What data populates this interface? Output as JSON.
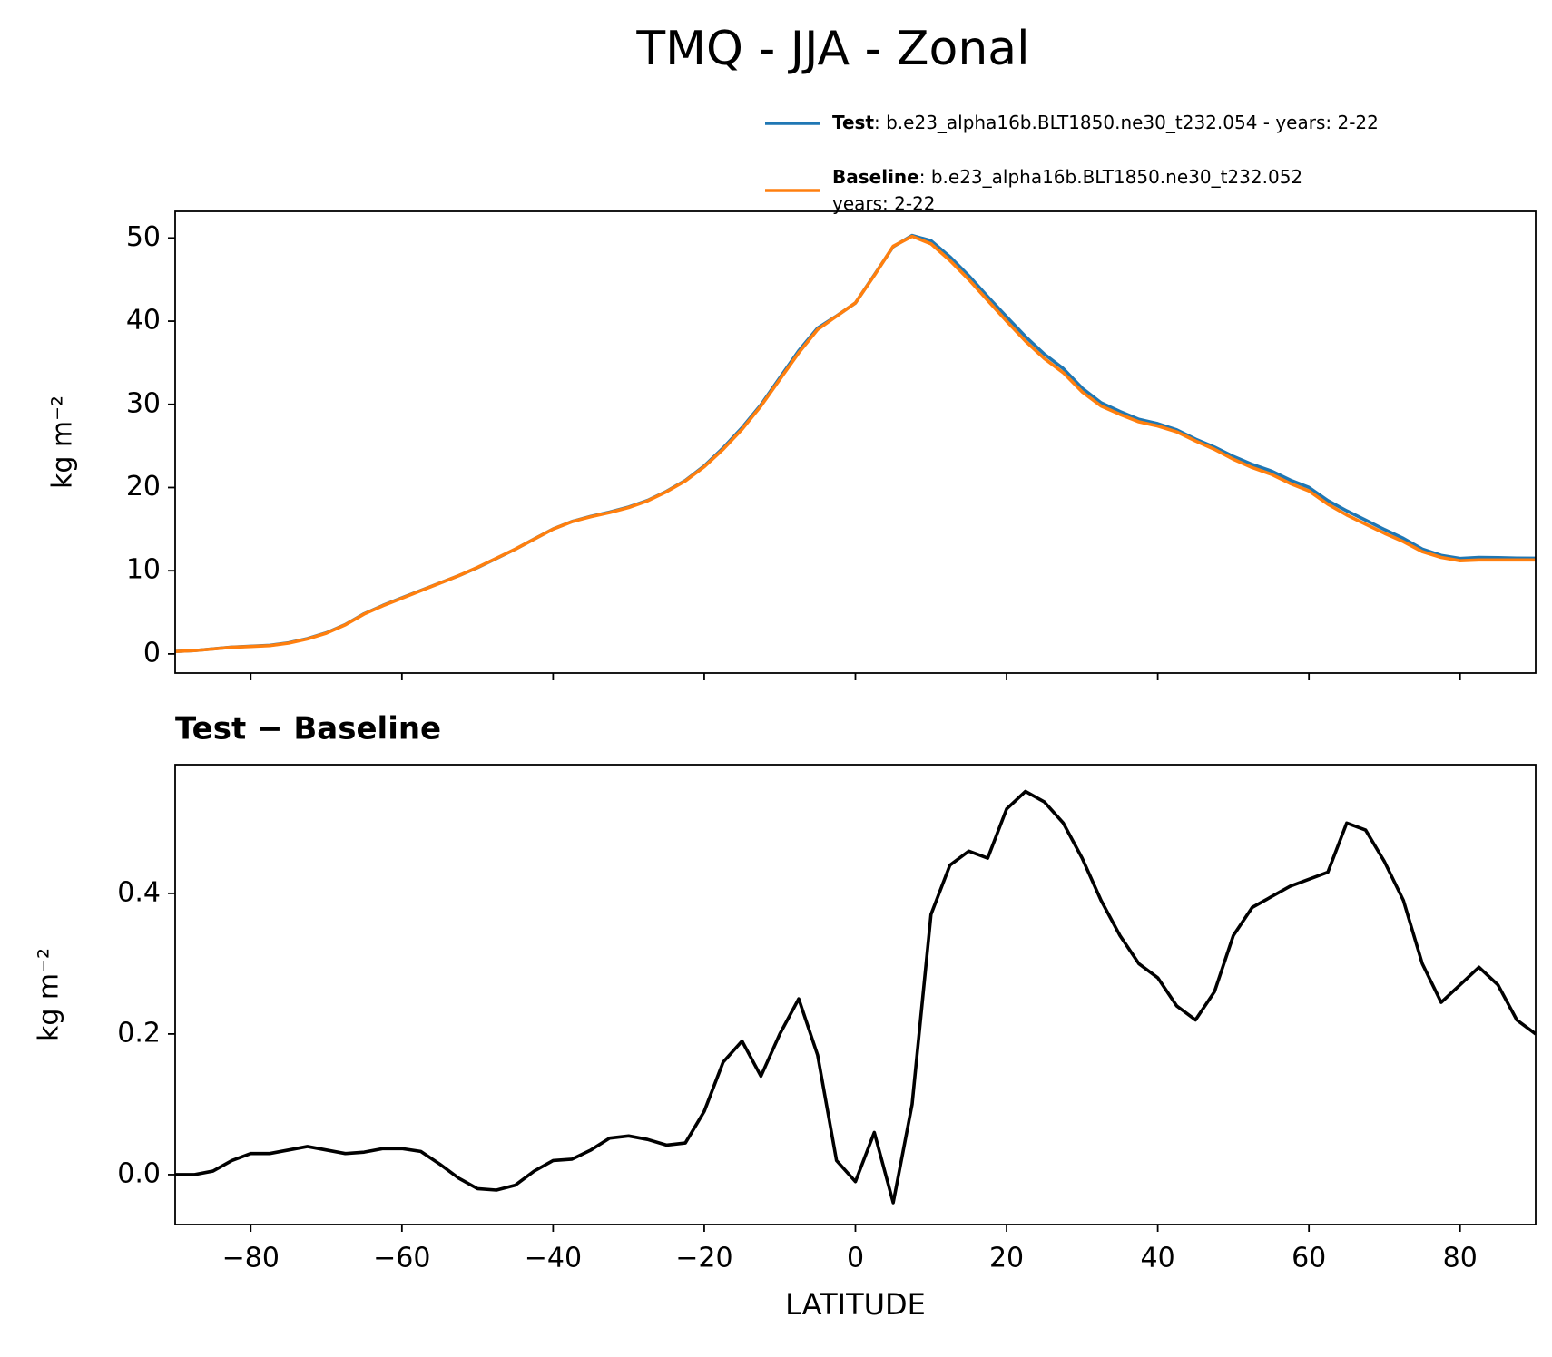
{
  "title": "TMQ - JJA - Zonal",
  "chart_data": [
    {
      "type": "line",
      "x": [
        -90,
        -87.5,
        -85,
        -82.5,
        -80,
        -77.5,
        -75,
        -72.5,
        -70,
        -67.5,
        -65,
        -62.5,
        -60,
        -57.5,
        -55,
        -52.5,
        -50,
        -47.5,
        -45,
        -42.5,
        -40,
        -37.5,
        -35,
        -32.5,
        -30,
        -27.5,
        -25,
        -22.5,
        -20,
        -17.5,
        -15,
        -12.5,
        -10,
        -7.5,
        -5,
        -2.5,
        0,
        2.5,
        5,
        7.5,
        10,
        12.5,
        15,
        17.5,
        20,
        22.5,
        25,
        27.5,
        30,
        32.5,
        35,
        37.5,
        40,
        42.5,
        45,
        47.5,
        50,
        52.5,
        55,
        57.5,
        60,
        62.5,
        65,
        67.5,
        70,
        72.5,
        75,
        77.5,
        80,
        82.5,
        85,
        87.5,
        90
      ],
      "series": [
        {
          "name": "Test",
          "legend_lines": [
            ": b.e23_alpha16b.BLT1850.ne30_t232.054 - years: 2-22"
          ],
          "color": "#1f77b4",
          "values": [
            0.3,
            0.4,
            0.61,
            0.82,
            0.93,
            1.03,
            1.34,
            1.84,
            2.54,
            3.53,
            4.83,
            5.84,
            6.74,
            7.63,
            8.52,
            9.4,
            10.38,
            11.48,
            12.59,
            13.81,
            15.02,
            15.92,
            16.54,
            17.05,
            17.66,
            18.45,
            19.54,
            20.85,
            22.59,
            24.76,
            27.19,
            29.94,
            33.2,
            36.45,
            39.17,
            40.62,
            42.19,
            45.56,
            48.96,
            50.3,
            49.67,
            47.74,
            45.46,
            42.95,
            40.52,
            38.15,
            36.03,
            34.3,
            31.95,
            30.19,
            29.14,
            28.2,
            27.68,
            26.94,
            25.82,
            24.86,
            23.74,
            22.78,
            22.0,
            20.91,
            20.02,
            18.43,
            17.2,
            16.09,
            14.95,
            13.89,
            12.6,
            11.85,
            11.47,
            11.6,
            11.57,
            11.52,
            11.5
          ]
        },
        {
          "name": "Baseline",
          "legend_lines": [
            ": b.e23_alpha16b.BLT1850.ne30_t232.052",
            "years: 2-22"
          ],
          "color": "#ff7f0e",
          "values": [
            0.3,
            0.4,
            0.6,
            0.8,
            0.9,
            1.0,
            1.3,
            1.8,
            2.5,
            3.5,
            4.8,
            5.8,
            6.7,
            7.6,
            8.5,
            9.4,
            10.4,
            11.5,
            12.6,
            13.8,
            15.0,
            15.9,
            16.5,
            17.0,
            17.6,
            18.4,
            19.5,
            20.8,
            22.5,
            24.6,
            27.0,
            29.8,
            33.0,
            36.2,
            39.0,
            40.6,
            42.2,
            45.5,
            49.0,
            50.2,
            49.3,
            47.3,
            45.0,
            42.5,
            40.0,
            37.6,
            35.5,
            33.8,
            31.5,
            29.8,
            28.8,
            27.9,
            27.4,
            26.7,
            25.6,
            24.6,
            23.4,
            22.4,
            21.6,
            20.5,
            19.6,
            18.0,
            16.7,
            15.6,
            14.5,
            13.5,
            12.3,
            11.6,
            11.2,
            11.3,
            11.3,
            11.3,
            11.3
          ]
        }
      ],
      "ylabel": "kg m⁻²",
      "xlim": [
        -90,
        90
      ],
      "xticks": [
        -80,
        -60,
        -40,
        -20,
        0,
        20,
        40,
        60,
        80
      ],
      "show_xtick_labels": false,
      "ylim": [
        -2.3,
        53.2
      ],
      "yticks": [
        0,
        10,
        20,
        30,
        40,
        50
      ]
    },
    {
      "type": "line",
      "title": "Test − Baseline",
      "x": [
        -90,
        -87.5,
        -85,
        -82.5,
        -80,
        -77.5,
        -75,
        -72.5,
        -70,
        -67.5,
        -65,
        -62.5,
        -60,
        -57.5,
        -55,
        -52.5,
        -50,
        -47.5,
        -45,
        -42.5,
        -40,
        -37.5,
        -35,
        -32.5,
        -30,
        -27.5,
        -25,
        -22.5,
        -20,
        -17.5,
        -15,
        -12.5,
        -10,
        -7.5,
        -5,
        -2.5,
        0,
        2.5,
        5,
        7.5,
        10,
        12.5,
        15,
        17.5,
        20,
        22.5,
        25,
        27.5,
        30,
        32.5,
        35,
        37.5,
        40,
        42.5,
        45,
        47.5,
        50,
        52.5,
        55,
        57.5,
        60,
        62.5,
        65,
        67.5,
        70,
        72.5,
        75,
        77.5,
        80,
        82.5,
        85,
        87.5,
        90
      ],
      "series": [
        {
          "color": "#000000",
          "values": [
            0.0,
            0.0,
            0.005,
            0.02,
            0.03,
            0.03,
            0.035,
            0.04,
            0.035,
            0.03,
            0.032,
            0.037,
            0.037,
            0.033,
            0.015,
            -0.005,
            -0.02,
            -0.022,
            -0.015,
            0.005,
            0.02,
            0.022,
            0.035,
            0.052,
            0.055,
            0.05,
            0.042,
            0.045,
            0.09,
            0.16,
            0.19,
            0.14,
            0.2,
            0.25,
            0.17,
            0.02,
            -0.01,
            0.06,
            -0.04,
            0.1,
            0.37,
            0.44,
            0.46,
            0.45,
            0.52,
            0.545,
            0.53,
            0.5,
            0.45,
            0.39,
            0.34,
            0.3,
            0.28,
            0.24,
            0.22,
            0.26,
            0.34,
            0.38,
            0.395,
            0.41,
            0.42,
            0.43,
            0.5,
            0.49,
            0.445,
            0.39,
            0.3,
            0.245,
            0.27,
            0.295,
            0.27,
            0.22,
            0.2
          ]
        }
      ],
      "ylabel": "kg m⁻²",
      "xlabel": "LATITUDE",
      "xlim": [
        -90,
        90
      ],
      "xticks": [
        {
          "value": -80,
          "label": "−80"
        },
        {
          "value": -60,
          "label": "−60"
        },
        {
          "value": -40,
          "label": "−40"
        },
        {
          "value": -20,
          "label": "−20"
        },
        0,
        20,
        40,
        60,
        80
      ],
      "show_xtick_labels": true,
      "ylim": [
        -0.071,
        0.583
      ],
      "yticks": [
        {
          "value": 0,
          "label": "0.0"
        },
        0.2,
        0.4
      ]
    }
  ]
}
